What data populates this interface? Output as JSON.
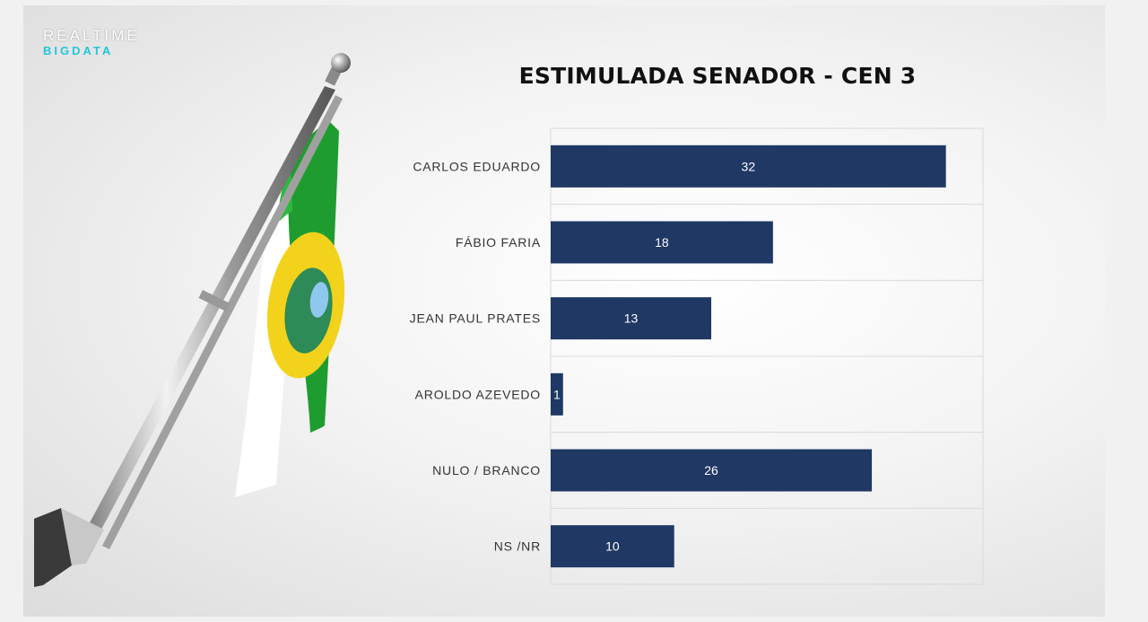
{
  "logo": {
    "line1": "REALTIME",
    "line2": "BIGDATA"
  },
  "colors": {
    "bar": "#1f3864",
    "accent": "#23c6d8",
    "flag_green": "#1f9c2f",
    "flag_white": "#ffffff",
    "flag_yellow": "#f2d21b"
  },
  "chart_data": {
    "type": "bar",
    "orientation": "horizontal",
    "title": "ESTIMULADA SENADOR - CEN 3",
    "categories": [
      "CARLOS EDUARDO",
      "FÁBIO FARIA",
      "JEAN PAUL PRATES",
      "AROLDO AZEVEDO",
      "NULO / BRANCO",
      "NS /NR"
    ],
    "values": [
      32,
      18,
      13,
      1,
      26,
      10
    ],
    "xlim": [
      0,
      35
    ],
    "grid": true,
    "legend": "none"
  }
}
